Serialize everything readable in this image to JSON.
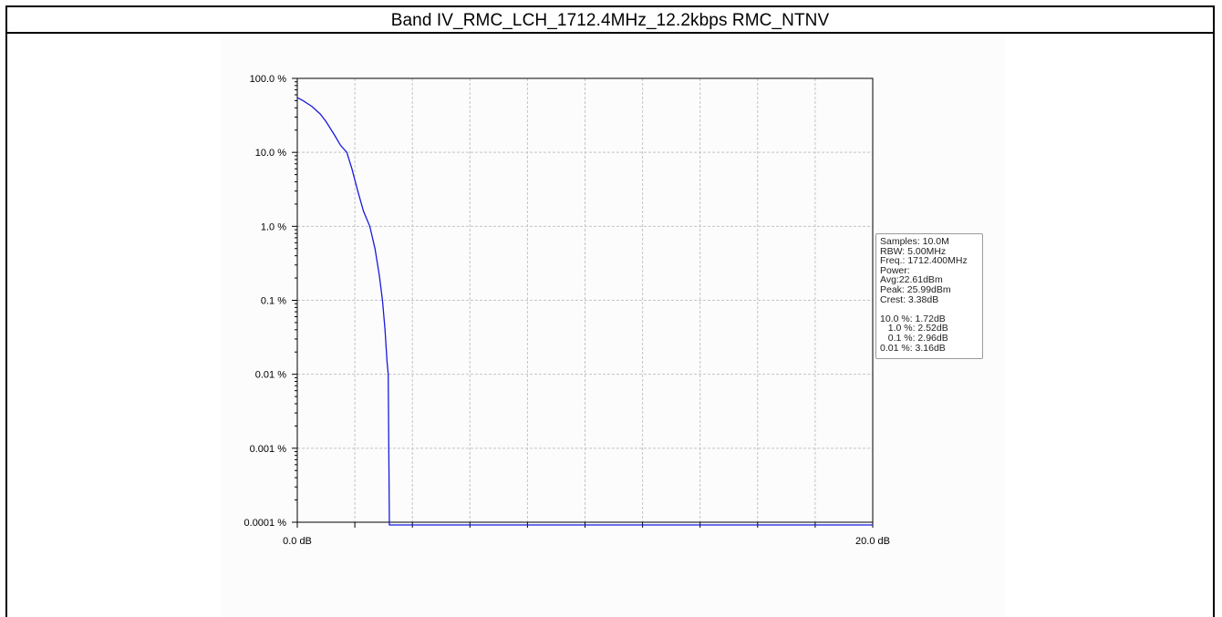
{
  "page": {
    "title": "Band IV_RMC_LCH_1712.4MHz_12.2kbps RMC_NTNV"
  },
  "chart_data": {
    "type": "line",
    "title": "Band IV_RMC_LCH_1712.4MHz_12.2kbps RMC_NTNV",
    "xlabel": "",
    "ylabel": "",
    "y_scale": "log",
    "xlim": [
      0,
      20
    ],
    "ylim": [
      0.0001,
      100
    ],
    "x_tick_labels": [
      "0.0 dB",
      "20.0 dB"
    ],
    "y_tick_labels": [
      "100.0 %",
      "10.0 %",
      "1.0 %",
      "0.1 %",
      "0.01 %",
      "0.001 %",
      "0.0001 %"
    ],
    "grid": true,
    "series": [
      {
        "color": "#1a1adc",
        "x": [
          0.0,
          0.2,
          0.5,
          0.8,
          1.0,
          1.3,
          1.5,
          1.72,
          1.9,
          2.1,
          2.3,
          2.52,
          2.7,
          2.85,
          2.96,
          3.05,
          3.12,
          3.16,
          3.2,
          3.3,
          20.0
        ],
        "y": [
          55,
          50,
          42,
          33,
          26,
          17,
          12.5,
          10.0,
          6.0,
          3.0,
          1.6,
          1.0,
          0.5,
          0.22,
          0.1,
          0.04,
          0.015,
          0.01,
          0.0001,
          0.0001,
          0.0001
        ]
      }
    ],
    "legend": {
      "lines": [
        "Samples: 10.0M",
        "RBW: 5.00MHz",
        "Freq.: 1712.400MHz",
        "Power:",
        "Avg:22.61dBm",
        "Peak: 25.99dBm",
        "Crest: 3.38dB",
        "",
        "10.0 %: 1.72dB",
        "   1.0 %: 2.52dB",
        "   0.1 %: 2.96dB",
        "0.01 %: 3.16dB"
      ]
    }
  }
}
